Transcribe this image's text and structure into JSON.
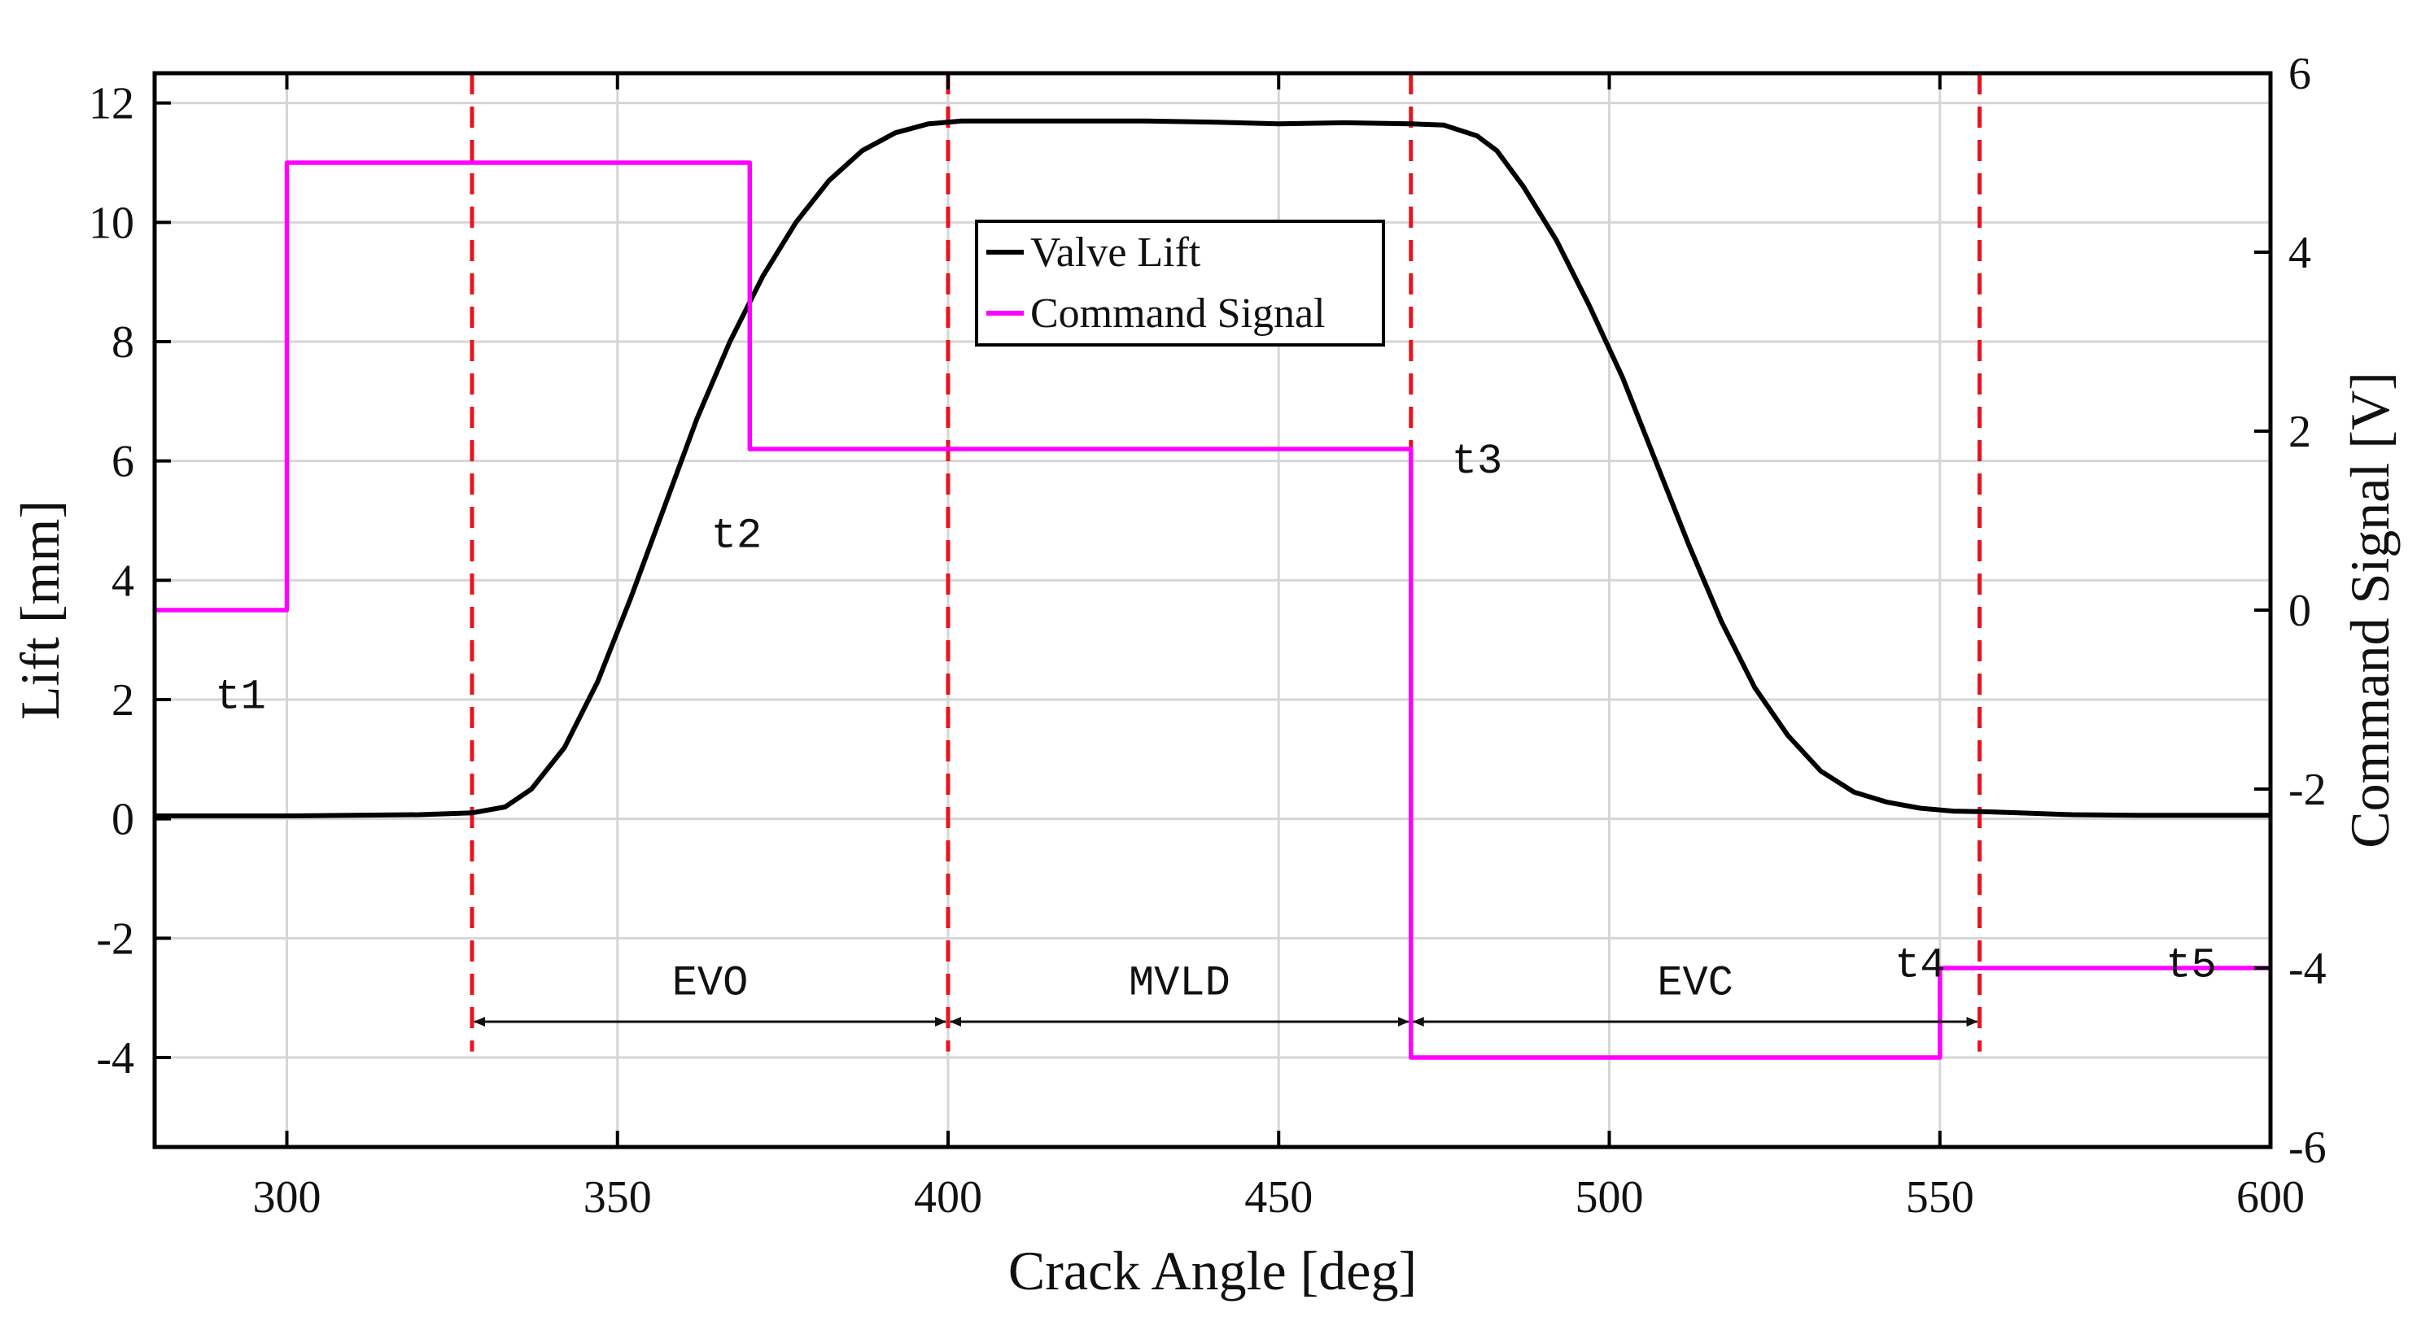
{
  "chart_data": {
    "type": "line",
    "title": "",
    "xlabel": "Crack Angle [deg]",
    "ylabel": "Lift [mm]",
    "y2label": "Command Signal [V]",
    "xlim": [
      280,
      600
    ],
    "ylim": [
      -5.5,
      12.5
    ],
    "y2lim": [
      -6,
      6
    ],
    "x_ticks": [
      300,
      350,
      400,
      450,
      500,
      550,
      600
    ],
    "x_tick_labels": [
      "300",
      "350",
      "400",
      "450",
      "500",
      "550",
      "600"
    ],
    "y_ticks": [
      -4,
      -2,
      0,
      2,
      4,
      6,
      8,
      10,
      12
    ],
    "y_tick_labels": [
      "-4",
      "-2",
      "0",
      "2",
      "4",
      "6",
      "8",
      "10",
      "12"
    ],
    "y2_ticks": [
      -6,
      -4,
      -2,
      0,
      2,
      4,
      6
    ],
    "y2_tick_labels": [
      "-6",
      "-4",
      "-2",
      "0",
      "2",
      "4",
      "6"
    ],
    "grid": true,
    "legend_position": "top-center",
    "series": [
      {
        "name": "Valve Lift",
        "axis": "left",
        "color": "#000000",
        "x": [
          280,
          300,
          320,
          328,
          333,
          337,
          342,
          347,
          352,
          357,
          362,
          367,
          372,
          377,
          382,
          387,
          392,
          397,
          402,
          410,
          420,
          430,
          440,
          450,
          460,
          470,
          475,
          480,
          483,
          487,
          492,
          497,
          502,
          507,
          512,
          517,
          522,
          527,
          532,
          537,
          542,
          547,
          552,
          557,
          562,
          570,
          580,
          600
        ],
        "values": [
          0.05,
          0.05,
          0.07,
          0.1,
          0.2,
          0.5,
          1.2,
          2.3,
          3.7,
          5.2,
          6.7,
          8.0,
          9.1,
          10.0,
          10.7,
          11.2,
          11.5,
          11.65,
          11.7,
          11.7,
          11.7,
          11.7,
          11.68,
          11.65,
          11.67,
          11.65,
          11.63,
          11.45,
          11.2,
          10.6,
          9.7,
          8.6,
          7.4,
          6.0,
          4.6,
          3.3,
          2.2,
          1.4,
          0.8,
          0.45,
          0.28,
          0.18,
          0.13,
          0.12,
          0.1,
          0.07,
          0.06,
          0.06
        ]
      },
      {
        "name": "Command Signal",
        "axis": "right",
        "color": "#ff00ff",
        "x": [
          280,
          300,
          300,
          370,
          370,
          470,
          470,
          550,
          550,
          600
        ],
        "values": [
          0,
          0,
          5,
          5,
          1.8,
          1.8,
          -5,
          -5,
          -4,
          -4
        ]
      }
    ],
    "event_lines": {
      "color": "#e8141e",
      "x": [
        328,
        400,
        470,
        556
      ]
    },
    "point_labels": [
      {
        "text": "t1",
        "x": 293,
        "y": 2.1
      },
      {
        "text": "t2",
        "x": 368,
        "y": 4.8
      },
      {
        "text": "t3",
        "x": 480,
        "y": 6.05
      },
      {
        "text": "t4",
        "x": 547,
        "y": -2.4
      },
      {
        "text": "t5",
        "x": 588,
        "y": -2.4
      }
    ],
    "intervals": [
      {
        "label": "EVO",
        "from": 328,
        "to": 400,
        "y": -3.4,
        "label_y": -2.7
      },
      {
        "label": "MVLD",
        "from": 400,
        "to": 470,
        "y": -3.4,
        "label_y": -2.7
      },
      {
        "label": "EVC",
        "from": 470,
        "to": 556,
        "y": -3.4,
        "label_y": -2.7
      }
    ]
  }
}
